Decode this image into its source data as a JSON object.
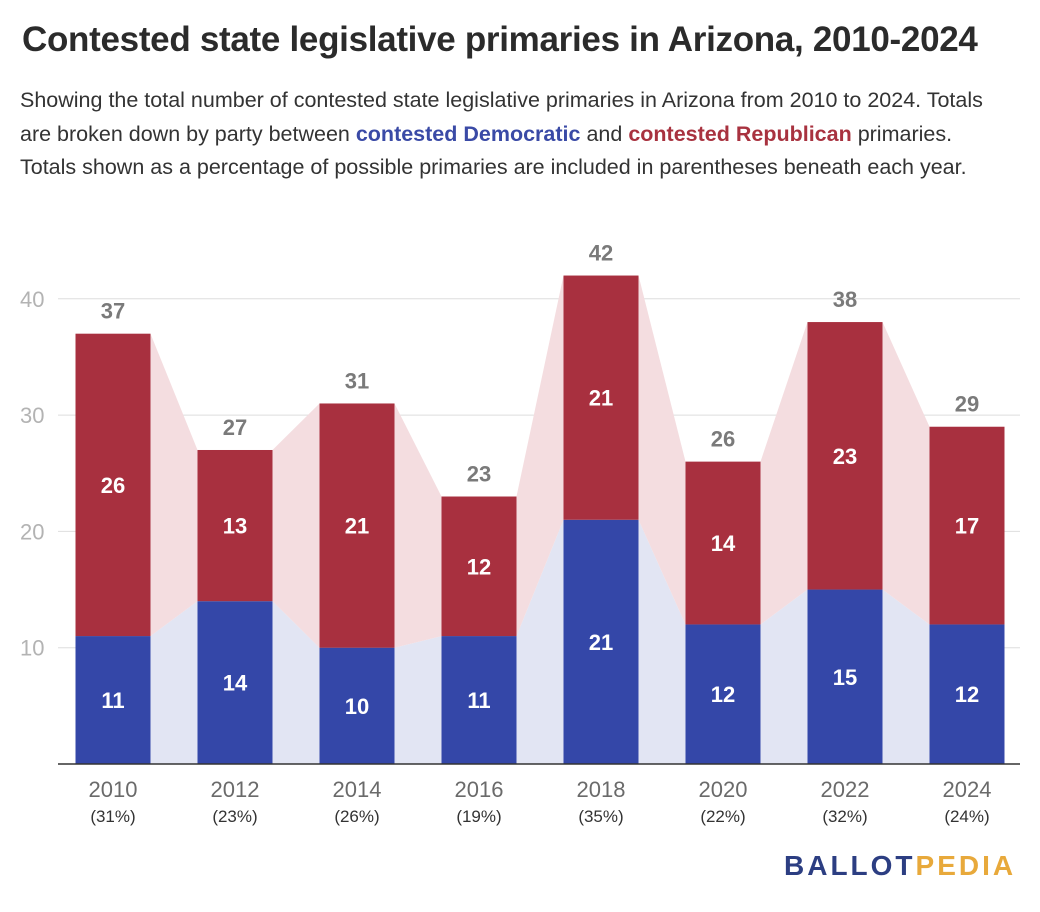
{
  "header": {
    "title": "Contested state legislative primaries in Arizona, 2010-2024",
    "subtitle_part1": "Showing the total number of contested state legislative primaries in Arizona from 2010 to 2024. Totals are broken down by party between ",
    "subtitle_dem": "contested Democratic",
    "subtitle_part2": " and ",
    "subtitle_rep": "contested Republican",
    "subtitle_part3": " primaries. Totals shown as a percentage of possible primaries are included in parentheses beneath each year."
  },
  "branding": {
    "part1": "BALLOT",
    "part2": "PEDIA"
  },
  "colors": {
    "democratic": "#3447a8",
    "republican": "#a8303f",
    "democratic_band": "#e2e5f3",
    "republican_band": "#f4dde0",
    "brand_primary": "#2c3e82",
    "brand_accent": "#e8a93b"
  },
  "chart_data": {
    "type": "bar",
    "stacked": true,
    "categories": [
      "2010",
      "2012",
      "2014",
      "2016",
      "2018",
      "2020",
      "2022",
      "2024"
    ],
    "category_sublabels": [
      "(31%)",
      "(23%)",
      "(26%)",
      "(19%)",
      "(35%)",
      "(22%)",
      "(32%)",
      "(24%)"
    ],
    "series": [
      {
        "name": "contested Democratic",
        "values": [
          11,
          14,
          10,
          11,
          21,
          12,
          15,
          12
        ]
      },
      {
        "name": "contested Republican",
        "values": [
          26,
          13,
          21,
          12,
          21,
          14,
          23,
          17
        ]
      }
    ],
    "totals": [
      37,
      27,
      31,
      23,
      42,
      26,
      38,
      29
    ],
    "y_ticks": [
      10,
      20,
      30,
      40
    ],
    "ylim": [
      0,
      44
    ],
    "grid": true,
    "legend": "none"
  }
}
